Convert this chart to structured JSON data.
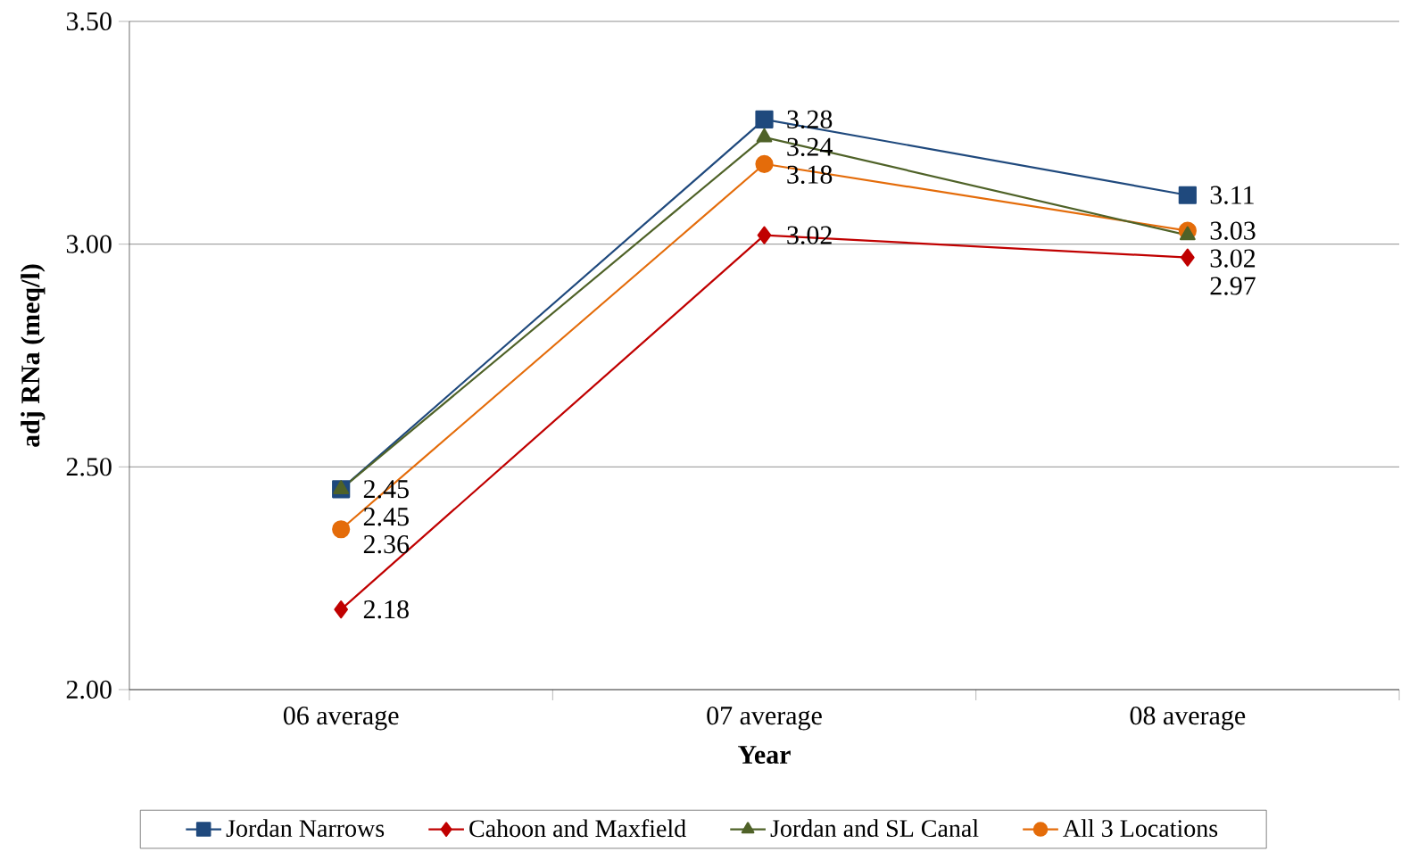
{
  "chart_data": {
    "type": "line",
    "xlabel": "Year",
    "ylabel": "adj RNa (meq/l)",
    "categories": [
      "06 average",
      "07 average",
      "08 average"
    ],
    "series": [
      {
        "name": "Jordan Narrows",
        "color": "#1f497d",
        "marker": "square",
        "values": [
          2.45,
          3.28,
          3.11
        ]
      },
      {
        "name": "Cahoon and Maxfield",
        "color": "#c00000",
        "marker": "diamond",
        "values": [
          2.18,
          3.02,
          2.97
        ]
      },
      {
        "name": "Jordan and SL Canal",
        "color": "#4f6228",
        "marker": "triangle",
        "values": [
          2.45,
          3.24,
          3.02
        ]
      },
      {
        "name": "All 3 Locations",
        "color": "#e46c0a",
        "marker": "circle",
        "values": [
          2.36,
          3.18,
          3.03
        ]
      }
    ],
    "ylim": [
      2.0,
      3.5
    ],
    "yticks": [
      {
        "value": 2.0,
        "label": "2.00"
      },
      {
        "value": 2.5,
        "label": "2.50"
      },
      {
        "value": 3.0,
        "label": "3.00"
      },
      {
        "value": 3.5,
        "label": "3.50"
      }
    ],
    "grid": "y",
    "legend": "bottom",
    "data_labels": true,
    "line_style": "solid"
  }
}
